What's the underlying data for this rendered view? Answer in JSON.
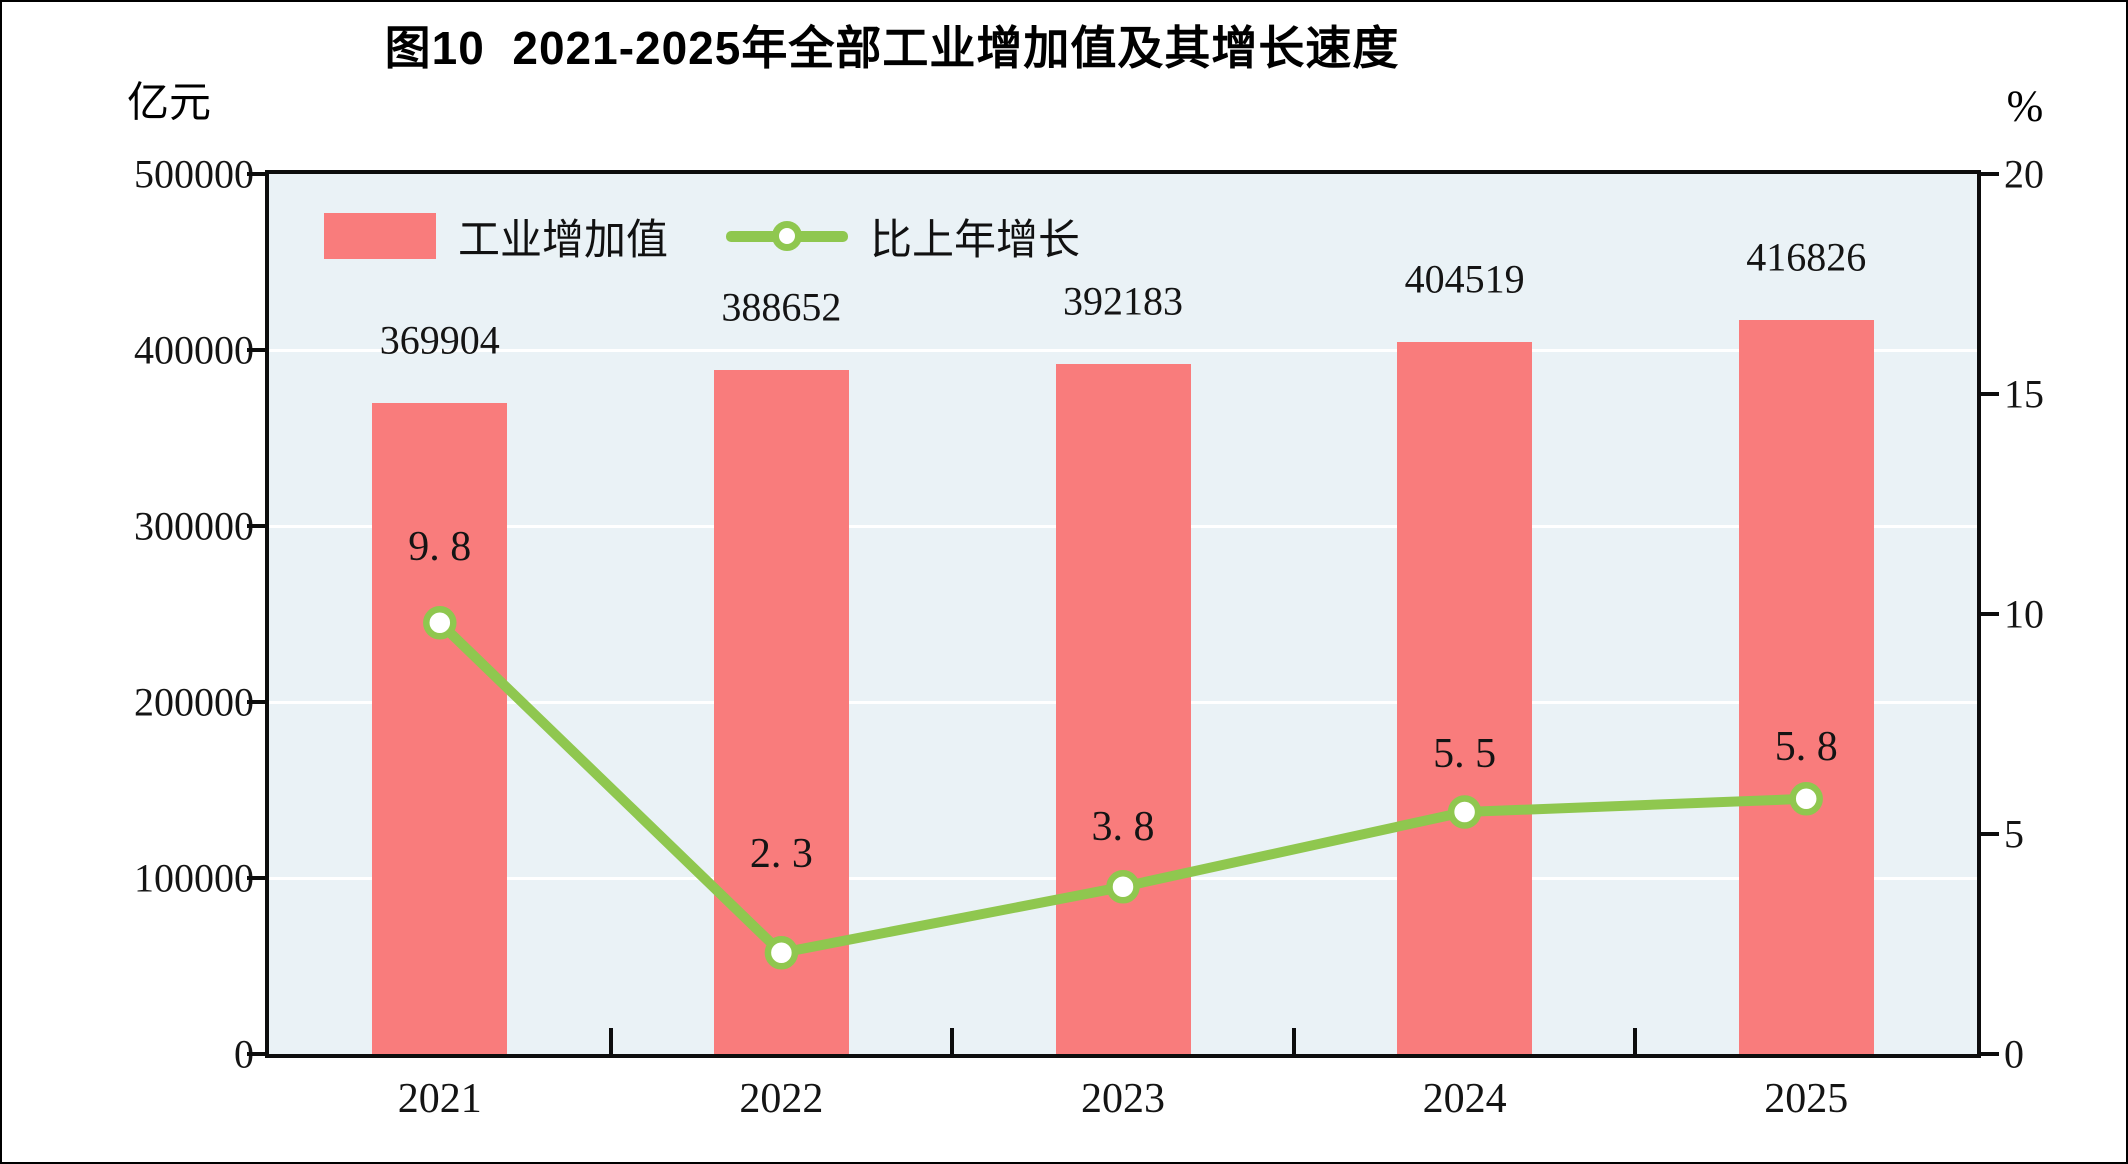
{
  "chart_data": {
    "type": "bar+line",
    "title": "图10  2021-2025年全部工业增加值及其增长速度",
    "categories": [
      "2021",
      "2022",
      "2023",
      "2024",
      "2025"
    ],
    "series": [
      {
        "name": "工业增加值",
        "type": "bar",
        "axis": "left",
        "color": "#F97C7C",
        "values": [
          369904,
          388652,
          392183,
          404519,
          416826
        ]
      },
      {
        "name": "比上年增长",
        "type": "line",
        "axis": "right",
        "color": "#8FC74F",
        "marker": "circle-white-fill-green-ring",
        "values": [
          9.8,
          2.3,
          3.8,
          5.5,
          5.8
        ]
      }
    ],
    "left_axis": {
      "unit": "亿元",
      "min": 0,
      "max": 500000,
      "tick_labels": [
        "500000",
        "400000",
        "300000",
        "200000",
        "100000",
        "0"
      ]
    },
    "right_axis": {
      "unit": "%",
      "min": 0,
      "max": 20,
      "tick_labels": [
        "20",
        "15",
        "10",
        "5",
        "0"
      ]
    },
    "legend": {
      "position": "top-left-inside",
      "entries": [
        "工业增加值",
        "比上年增长"
      ]
    },
    "style": {
      "plot_bg": "#EAF2F6",
      "grid_color": "#FFFFFF",
      "axis_color": "#0D0D0D",
      "label_color": "#141414",
      "grid": "horizontal white lines at left-axis ticks"
    }
  }
}
